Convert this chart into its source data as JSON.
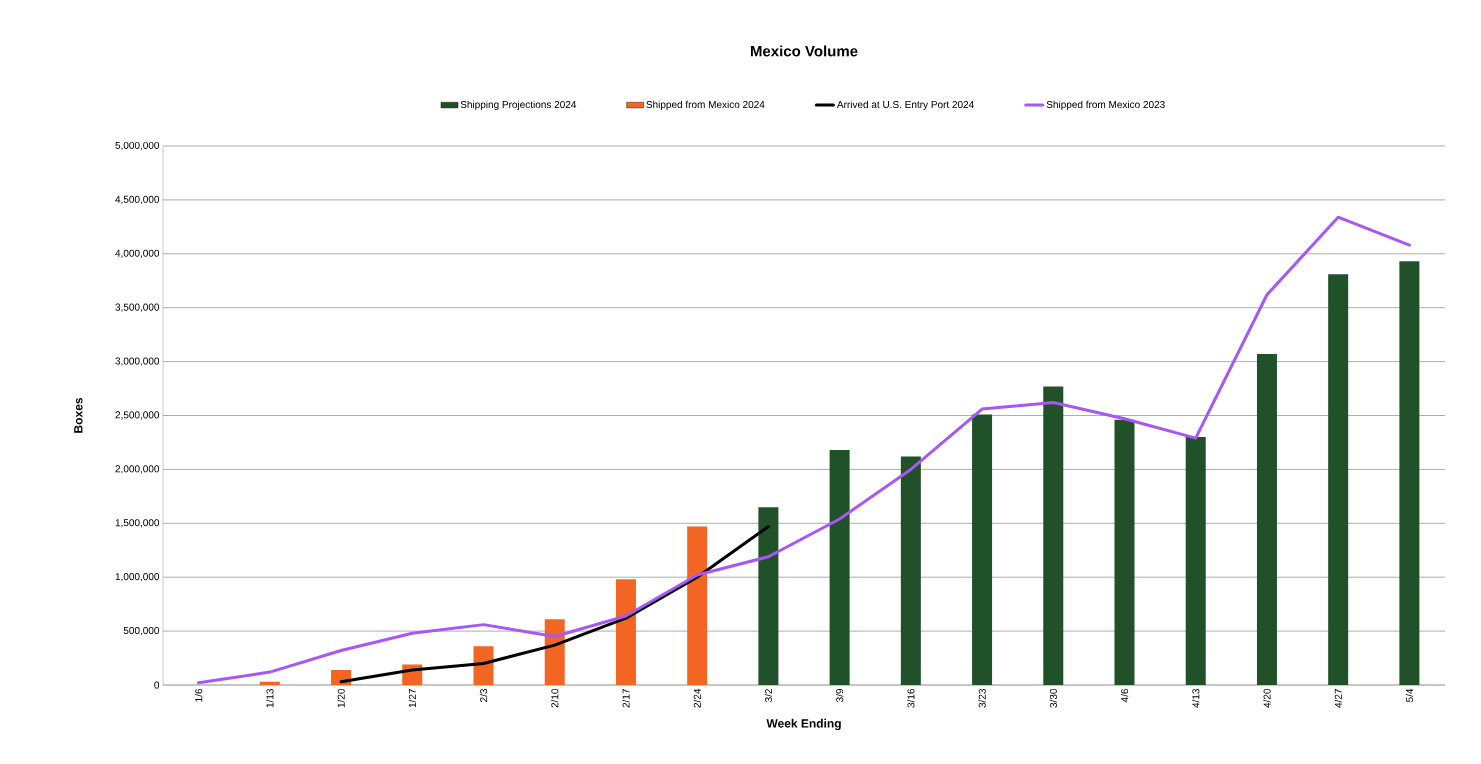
{
  "chart_data": {
    "type": "bar",
    "title": "Mexico Volume",
    "xlabel": "Week Ending",
    "ylabel": "Boxes",
    "categories": [
      "1/6",
      "1/13",
      "1/20",
      "1/27",
      "2/3",
      "2/10",
      "2/17",
      "2/24",
      "3/2",
      "3/9",
      "3/16",
      "3/23",
      "3/30",
      "4/6",
      "4/13",
      "4/20",
      "4/27",
      "5/4"
    ],
    "series": [
      {
        "name": "Shipping Projections 2024",
        "color": "#215128",
        "values": [
          null,
          null,
          null,
          null,
          null,
          null,
          null,
          null,
          1650000,
          2180000,
          2120000,
          2510000,
          2770000,
          2460000,
          2300000,
          3070000,
          3810000,
          3930000
        ]
      },
      {
        "name": "Shipped from Mexico 2024",
        "color": "#f26522",
        "values": [
          null,
          30000,
          140000,
          190000,
          360000,
          610000,
          980000,
          1470000,
          null,
          null,
          null,
          null,
          null,
          null,
          null,
          null,
          null,
          null
        ]
      },
      {
        "name": "Arrived at U.S. Entry Port 2024",
        "type": "line",
        "color": "#000000",
        "values": [
          null,
          null,
          30000,
          140000,
          200000,
          370000,
          620000,
          1000000,
          1470000,
          null,
          null,
          null,
          null,
          null,
          null,
          null,
          null,
          null
        ]
      },
      {
        "name": "Shipped from Mexico 2023",
        "type": "line",
        "color": "#a757f5",
        "values": [
          20000,
          120000,
          320000,
          480000,
          560000,
          450000,
          640000,
          1020000,
          1190000,
          1540000,
          2000000,
          2560000,
          2620000,
          2470000,
          2290000,
          3620000,
          4340000,
          4080000
        ]
      }
    ],
    "ylim": [
      0,
      5000000
    ],
    "yticks": [
      {
        "value": 0,
        "label": "0"
      },
      {
        "value": 500000,
        "label": "500,000"
      },
      {
        "value": 1000000,
        "label": "1,000,000"
      },
      {
        "value": 1500000,
        "label": "1,500,000"
      },
      {
        "value": 2000000,
        "label": "2,000,000"
      },
      {
        "value": 2500000,
        "label": "2,500,000"
      },
      {
        "value": 3000000,
        "label": "3,000,000"
      },
      {
        "value": 3500000,
        "label": "3,500,000"
      },
      {
        "value": 4000000,
        "label": "4,000,000"
      },
      {
        "value": 4500000,
        "label": "4,500,000"
      },
      {
        "value": 5000000,
        "label": "5,000,000"
      }
    ],
    "grid": "y",
    "legend": "top"
  }
}
